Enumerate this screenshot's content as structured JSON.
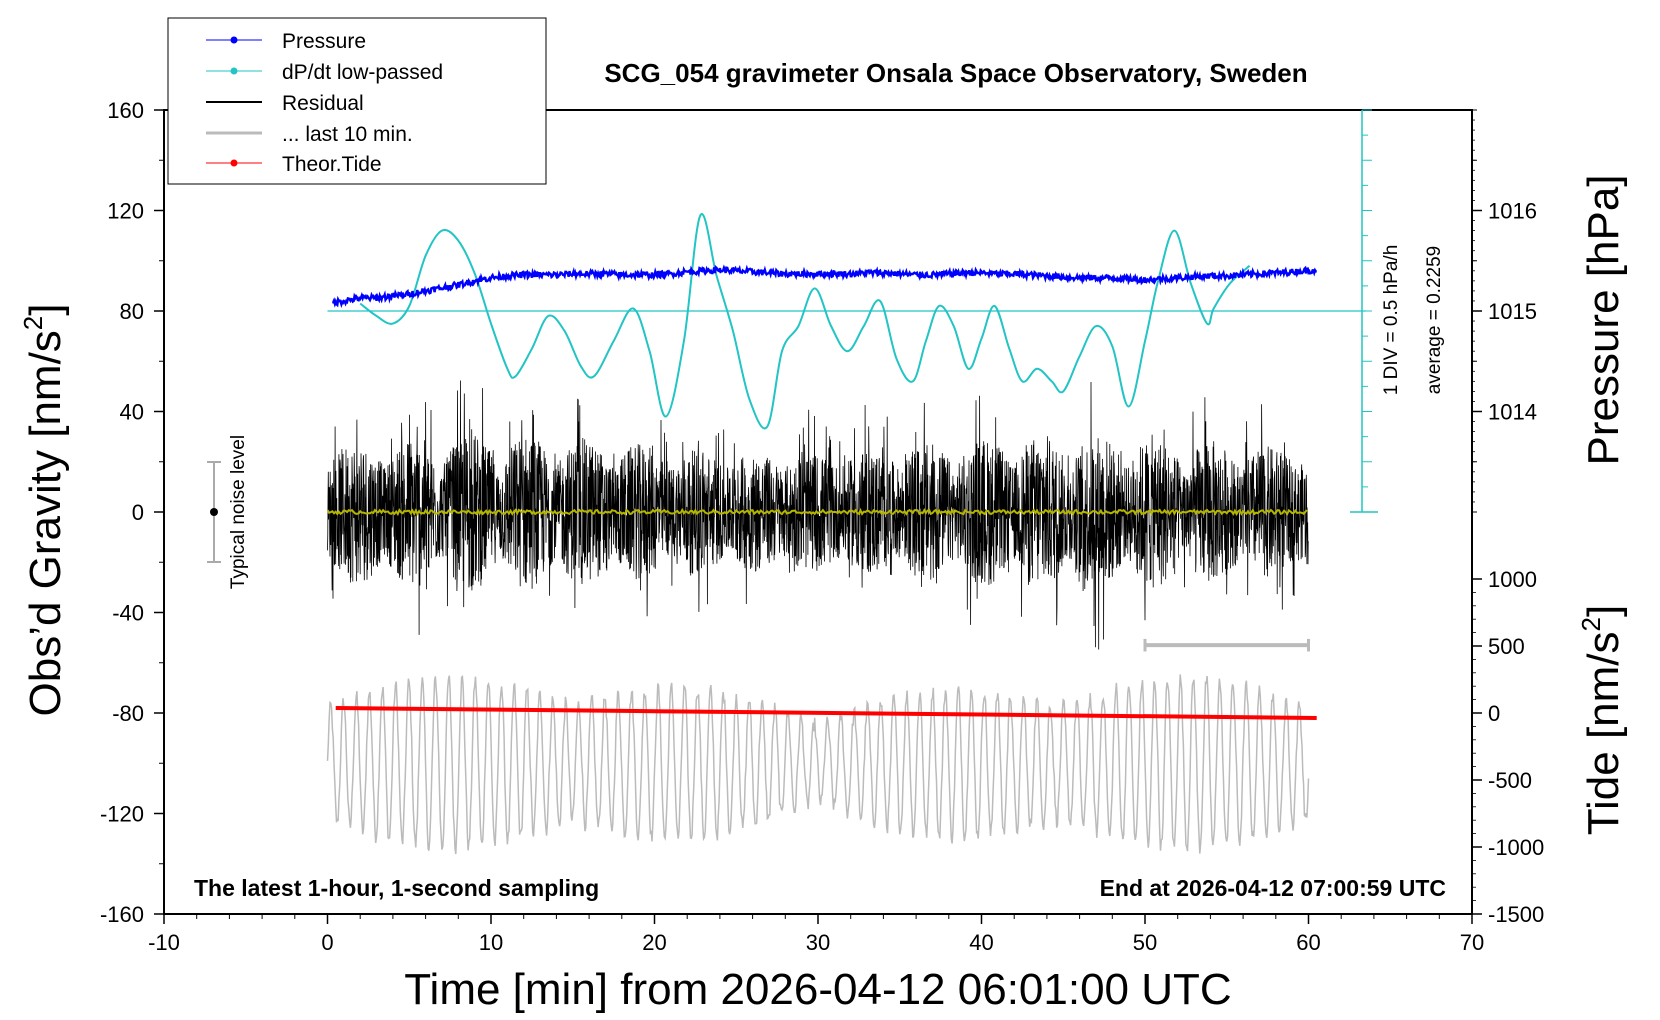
{
  "chart_data": {
    "type": "line",
    "title": "SCG_054 gravimeter Onsala Space Observatory, Sweden",
    "xlabel": "Time [min] from 2026-04-12 06:01:00 UTC",
    "ylabel_left_main": "Obs’d Gravity [nm/s",
    "ylabel_left_sup": "2",
    "ylabel_left_end": "]",
    "ylabel_right_pressure": "Pressure [hPa]",
    "ylabel_right_tide_main": "Tide [nm/s",
    "ylabel_right_tide_sup": "2",
    "ylabel_right_tide_end": "]",
    "xlim": [
      -10,
      70
    ],
    "ylim": [
      -160,
      160
    ],
    "x_ticks": [
      "-10",
      "0",
      "10",
      "20",
      "30",
      "40",
      "50",
      "60",
      "70"
    ],
    "y_ticks": [
      "160",
      "120",
      "80",
      "40",
      "0",
      "-40",
      "-80",
      "-120",
      "-160"
    ],
    "pressure_ticks": [
      "1016",
      "1015",
      "1014"
    ],
    "tide_ticks": [
      "1000",
      "500",
      "0",
      "-500",
      "-1000",
      "-1500"
    ],
    "grid": false,
    "legend_position": "top-left",
    "legend": [
      {
        "name": "Pressure",
        "color": "#0000ff",
        "marker": true
      },
      {
        "name": "dP/dt low-passed",
        "color": "#22c4c4",
        "marker": true
      },
      {
        "name": "Residual",
        "color": "#000000",
        "marker": false
      },
      {
        "name": "... last 10 min.",
        "color": "#bbbbbb",
        "marker": false
      },
      {
        "name": "Theor.Tide",
        "color": "#ff0000",
        "marker": true
      }
    ],
    "annotations": {
      "bottom_left": "The latest 1-hour, 1-second sampling",
      "bottom_right": "End at 2026-04-12 07:00:59 UTC",
      "noise_label": "Typical noise level",
      "scale_label_1": "1 DIV = 0.5 hPa/h",
      "scale_label_2": "average = 0.2259"
    },
    "series": [
      {
        "name": "Pressure",
        "color": "#0000ff",
        "x": [
          0.3,
          1,
          2,
          3,
          4,
          5,
          6,
          7,
          8,
          9,
          10,
          11,
          12,
          13,
          14,
          15,
          16,
          17,
          18,
          19,
          20,
          21,
          22,
          23,
          24,
          25,
          26,
          27,
          28,
          29,
          30,
          31,
          32,
          33,
          34,
          35,
          36,
          37,
          38,
          39,
          40,
          41,
          42,
          43,
          44,
          45,
          46,
          47,
          48,
          49,
          50,
          51,
          52,
          53,
          54,
          55,
          56,
          57,
          58,
          59,
          60.5
        ],
        "values": [
          1015.08,
          1015.1,
          1015.13,
          1015.13,
          1015.15,
          1015.17,
          1015.2,
          1015.23,
          1015.26,
          1015.3,
          1015.33,
          1015.35,
          1015.36,
          1015.36,
          1015.36,
          1015.37,
          1015.37,
          1015.37,
          1015.36,
          1015.36,
          1015.36,
          1015.37,
          1015.39,
          1015.4,
          1015.41,
          1015.4,
          1015.39,
          1015.38,
          1015.37,
          1015.37,
          1015.37,
          1015.37,
          1015.37,
          1015.38,
          1015.38,
          1015.37,
          1015.36,
          1015.36,
          1015.37,
          1015.38,
          1015.38,
          1015.37,
          1015.37,
          1015.36,
          1015.35,
          1015.34,
          1015.33,
          1015.33,
          1015.33,
          1015.32,
          1015.31,
          1015.32,
          1015.33,
          1015.34,
          1015.35,
          1015.35,
          1015.36,
          1015.37,
          1015.38,
          1015.39,
          1015.41
        ]
      },
      {
        "name": "dP/dt low-passed",
        "color": "#22c4c4",
        "x": [
          2,
          3,
          4,
          5,
          6,
          7,
          8,
          9,
          10,
          11,
          11.5,
          12.5,
          13.5,
          14.5,
          15.5,
          16.3,
          17.5,
          18.7,
          19.7,
          20.7,
          21.8,
          22.8,
          23.8,
          24.8,
          25.8,
          26.9,
          27.8,
          28.8,
          29.8,
          30.8,
          31.8,
          32.8,
          33.8,
          34.8,
          35.8,
          36.6,
          37.4,
          38.3,
          39.2,
          40,
          40.8,
          41.7,
          42.5,
          43.4,
          44.3,
          45,
          46,
          47,
          48,
          49,
          50,
          50.8,
          51.8,
          52.8,
          53.8,
          54.2,
          55.2,
          56.4
        ],
        "values": [
          0.3,
          -0.2,
          -0.5,
          0.2,
          2.2,
          3.2,
          2.8,
          1.5,
          -0.5,
          -2.3,
          -2.6,
          -1.5,
          -0.2,
          -0.8,
          -2.2,
          -2.6,
          -1.2,
          0.1,
          -1.6,
          -4.2,
          -1.2,
          3.8,
          1.4,
          -0.8,
          -3.5,
          -4.6,
          -1.6,
          -0.6,
          0.9,
          -0.6,
          -1.6,
          -0.6,
          0.4,
          -1.9,
          -2.8,
          -1.2,
          0.2,
          -0.6,
          -2.3,
          -1.1,
          0.2,
          -1.5,
          -2.8,
          -2.3,
          -2.8,
          -3.2,
          -1.8,
          -0.6,
          -1.4,
          -3.8,
          -1.2,
          1.2,
          3.2,
          1.1,
          -0.5,
          0.1,
          1.1,
          1.8
        ]
      },
      {
        "name": "Residual",
        "color": "#000000",
        "x": [
          0,
          60
        ],
        "values": [
          0,
          0
        ],
        "amplitude": 40
      },
      {
        "name": "Residual low-passed",
        "color": "#b5b500",
        "x": [
          0,
          60
        ],
        "values": [
          0,
          0
        ]
      },
      {
        "name": "... last 10 min.",
        "color": "#bbbbbb",
        "x": [
          0,
          60
        ],
        "values": [
          -100,
          -100
        ],
        "amplitude": 25
      },
      {
        "name": "Theor.Tide",
        "color": "#ff0000",
        "x": [
          0.5,
          20,
          40,
          60.5
        ],
        "values": [
          -78,
          -79.3,
          -80.6,
          -82
        ]
      }
    ]
  }
}
